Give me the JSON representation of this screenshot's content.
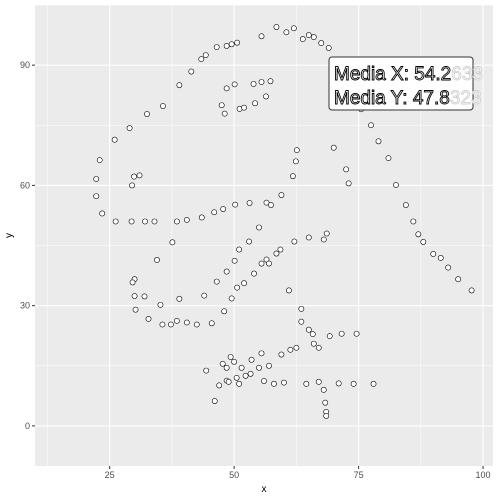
{
  "chart_data": {
    "type": "scatter",
    "xlabel": "x",
    "ylabel": "y",
    "xlim": [
      10,
      102
    ],
    "ylim": [
      -10,
      105
    ],
    "x_ticks": [
      25,
      50,
      75,
      100
    ],
    "y_ticks": [
      0,
      30,
      60,
      90
    ],
    "grid": true,
    "panel_background": "#ebebeb",
    "gridline_color": "#ffffff",
    "annotation": {
      "line1_visible": "Media X: 54.2",
      "line1_faded": "633",
      "line2_visible": "Media Y: 47.8",
      "line2_faded": "323",
      "position": "top-right"
    },
    "points": [
      [
        22.3,
        61.6
      ],
      [
        22.3,
        57.3
      ],
      [
        23.0,
        66.3
      ],
      [
        23.5,
        53.0
      ],
      [
        26.0,
        71.4
      ],
      [
        26.2,
        51.0
      ],
      [
        29.0,
        74.3
      ],
      [
        29.4,
        51.0
      ],
      [
        29.9,
        62.2
      ],
      [
        29.5,
        60.0
      ],
      [
        31.0,
        62.5
      ],
      [
        32.1,
        51.0
      ],
      [
        32.5,
        77.8
      ],
      [
        34.0,
        51.0
      ],
      [
        34.5,
        41.4
      ],
      [
        35.7,
        79.8
      ],
      [
        37.6,
        45.8
      ],
      [
        38.5,
        51.0
      ],
      [
        39.0,
        85.0
      ],
      [
        40.5,
        51.4
      ],
      [
        41.4,
        88.4
      ],
      [
        43.4,
        91.5
      ],
      [
        43.5,
        52.0
      ],
      [
        44.3,
        92.5
      ],
      [
        46.0,
        53.3
      ],
      [
        46.5,
        94.5
      ],
      [
        47.5,
        80.0
      ],
      [
        48.5,
        94.8
      ],
      [
        47.8,
        54.1
      ],
      [
        48.1,
        77.9
      ],
      [
        48.5,
        84.2
      ],
      [
        49.5,
        95.2
      ],
      [
        50.1,
        85.2
      ],
      [
        50.6,
        95.6
      ],
      [
        51.1,
        79.1
      ],
      [
        52.0,
        79.4
      ],
      [
        50.2,
        55.2
      ],
      [
        53.1,
        55.6
      ],
      [
        53.9,
        85.3
      ],
      [
        54.2,
        80.5
      ],
      [
        55.5,
        97.2
      ],
      [
        55.5,
        85.8
      ],
      [
        56.4,
        82.2
      ],
      [
        57.3,
        86.0
      ],
      [
        56.5,
        55.7
      ],
      [
        57.4,
        55.1
      ],
      [
        58.5,
        99.5
      ],
      [
        59.5,
        57.6
      ],
      [
        60.5,
        98.2
      ],
      [
        61.8,
        62.3
      ],
      [
        62.0,
        99.2
      ],
      [
        62.4,
        66.0
      ],
      [
        62.6,
        68.8
      ],
      [
        63.8,
        96.5
      ],
      [
        65.0,
        97.5
      ],
      [
        66.0,
        97.0
      ],
      [
        67.5,
        95.5
      ],
      [
        69.0,
        94.3
      ],
      [
        70.0,
        69.4
      ],
      [
        71.0,
        89.0
      ],
      [
        72.5,
        64.0
      ],
      [
        73.0,
        60.5
      ],
      [
        74.3,
        83.6
      ],
      [
        75.5,
        79.0
      ],
      [
        77.5,
        75.0
      ],
      [
        79.0,
        71.0
      ],
      [
        81.0,
        66.8
      ],
      [
        82.5,
        60.1
      ],
      [
        84.5,
        55.1
      ],
      [
        86.0,
        51.0
      ],
      [
        87.0,
        47.8
      ],
      [
        88.0,
        45.9
      ],
      [
        90.0,
        42.9
      ],
      [
        91.5,
        41.9
      ],
      [
        93.0,
        39.5
      ],
      [
        95.0,
        36.6
      ],
      [
        97.7,
        33.8
      ],
      [
        30.0,
        36.6
      ],
      [
        29.6,
        35.8
      ],
      [
        30.0,
        32.4
      ],
      [
        30.2,
        29.0
      ],
      [
        32.0,
        32.3
      ],
      [
        32.8,
        26.7
      ],
      [
        35.2,
        30.2
      ],
      [
        35.6,
        25.3
      ],
      [
        37.3,
        25.3
      ],
      [
        38.5,
        26.2
      ],
      [
        39.0,
        31.7
      ],
      [
        40.5,
        25.8
      ],
      [
        42.5,
        25.3
      ],
      [
        44.0,
        32.5
      ],
      [
        45.5,
        25.6
      ],
      [
        46.5,
        36.0
      ],
      [
        48.0,
        28.6
      ],
      [
        48.5,
        38.5
      ],
      [
        49.5,
        31.8
      ],
      [
        50.1,
        41.2
      ],
      [
        50.6,
        34.5
      ],
      [
        51.0,
        44.0
      ],
      [
        52.0,
        35.6
      ],
      [
        53.0,
        46.0
      ],
      [
        54.0,
        38.0
      ],
      [
        55.0,
        49.5
      ],
      [
        55.5,
        40.5
      ],
      [
        56.5,
        41.5
      ],
      [
        57.0,
        40.5
      ],
      [
        58.5,
        43.0
      ],
      [
        59.3,
        44.0
      ],
      [
        61.0,
        33.8
      ],
      [
        62.1,
        46.0
      ],
      [
        63.5,
        29.2
      ],
      [
        63.5,
        26.0
      ],
      [
        65.0,
        24.0
      ],
      [
        65.0,
        47.0
      ],
      [
        65.8,
        22.9
      ],
      [
        67.0,
        19.5
      ],
      [
        68.0,
        46.5
      ],
      [
        68.6,
        48.0
      ],
      [
        69.2,
        22.4
      ],
      [
        71.6,
        23.0
      ],
      [
        74.6,
        23.0
      ],
      [
        44.4,
        13.8
      ],
      [
        46.1,
        6.2
      ],
      [
        47.0,
        10.1
      ],
      [
        47.7,
        15.5
      ],
      [
        48.5,
        14.5
      ],
      [
        48.5,
        11.3
      ],
      [
        48.9,
        11.0
      ],
      [
        49.3,
        17.2
      ],
      [
        50.0,
        16.0
      ],
      [
        50.5,
        12.0
      ],
      [
        51.0,
        10.5
      ],
      [
        51.5,
        14.5
      ],
      [
        52.3,
        12.5
      ],
      [
        53.3,
        13.0
      ],
      [
        53.5,
        16.5
      ],
      [
        55.0,
        14.5
      ],
      [
        55.5,
        18.1
      ],
      [
        56.0,
        11.2
      ],
      [
        57.0,
        15.0
      ],
      [
        58.0,
        10.5
      ],
      [
        59.5,
        17.8
      ],
      [
        60.0,
        10.8
      ],
      [
        61.3,
        19.0
      ],
      [
        62.5,
        19.5
      ],
      [
        64.5,
        10.5
      ],
      [
        66.0,
        20.5
      ],
      [
        67.0,
        11.0
      ],
      [
        68.0,
        9.0
      ],
      [
        68.3,
        5.8
      ],
      [
        68.5,
        3.5
      ],
      [
        68.5,
        2.5
      ],
      [
        71.0,
        10.6
      ],
      [
        74.0,
        10.5
      ],
      [
        78.0,
        10.5
      ]
    ]
  }
}
